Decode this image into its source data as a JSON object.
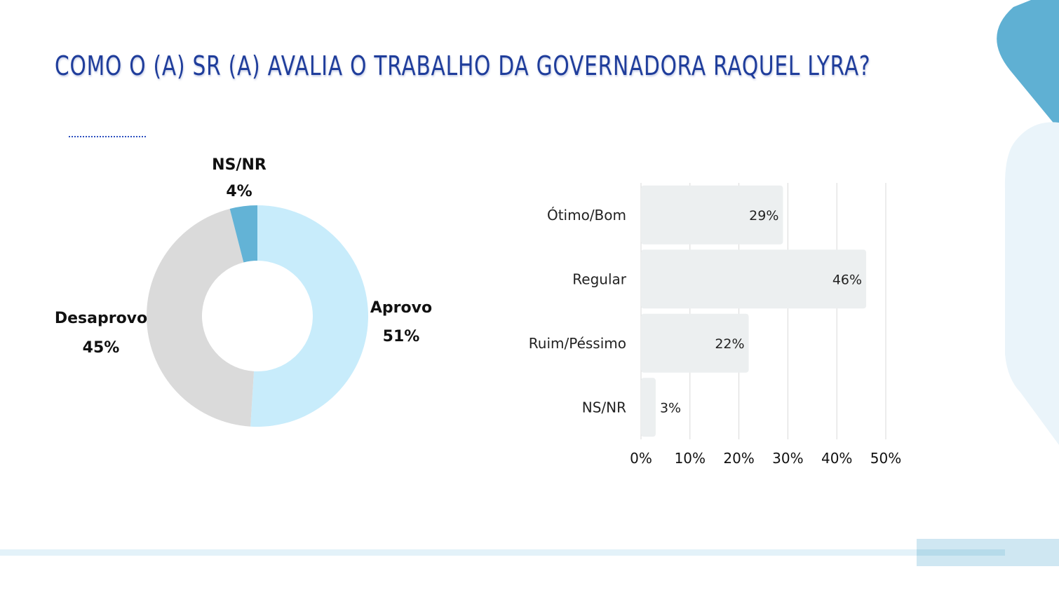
{
  "title": "COMO O (A) SR (A) AVALIA O TRABALHO DA GOVERNADORA RAQUEL LYRA?",
  "colors": {
    "title": "#1f3d9b",
    "aprovo": "#c8ecfb",
    "desaprovo": "#dadada",
    "nsnr": "#63b3d6",
    "bars": "#eceff0",
    "grid": "#d9d9d9"
  },
  "chart_data": [
    {
      "type": "pie",
      "donut": true,
      "slices": [
        {
          "label": "Aprovo",
          "value": 51,
          "value_label": "51%"
        },
        {
          "label": "Desaprovo",
          "value": 45,
          "value_label": "45%"
        },
        {
          "label": "NS/NR",
          "value": 4,
          "value_label": "4%"
        }
      ]
    },
    {
      "type": "bar",
      "orientation": "horizontal",
      "categories": [
        "Ótimo/Bom",
        "Regular",
        "Ruim/Péssimo",
        "NS/NR"
      ],
      "values": [
        29,
        46,
        22,
        3
      ],
      "value_labels": [
        "29%",
        "46%",
        "22%",
        "3%"
      ],
      "xlim": [
        0,
        50
      ],
      "xticks": [
        "0%",
        "10%",
        "20%",
        "30%",
        "40%",
        "50%"
      ],
      "grid": true
    }
  ]
}
